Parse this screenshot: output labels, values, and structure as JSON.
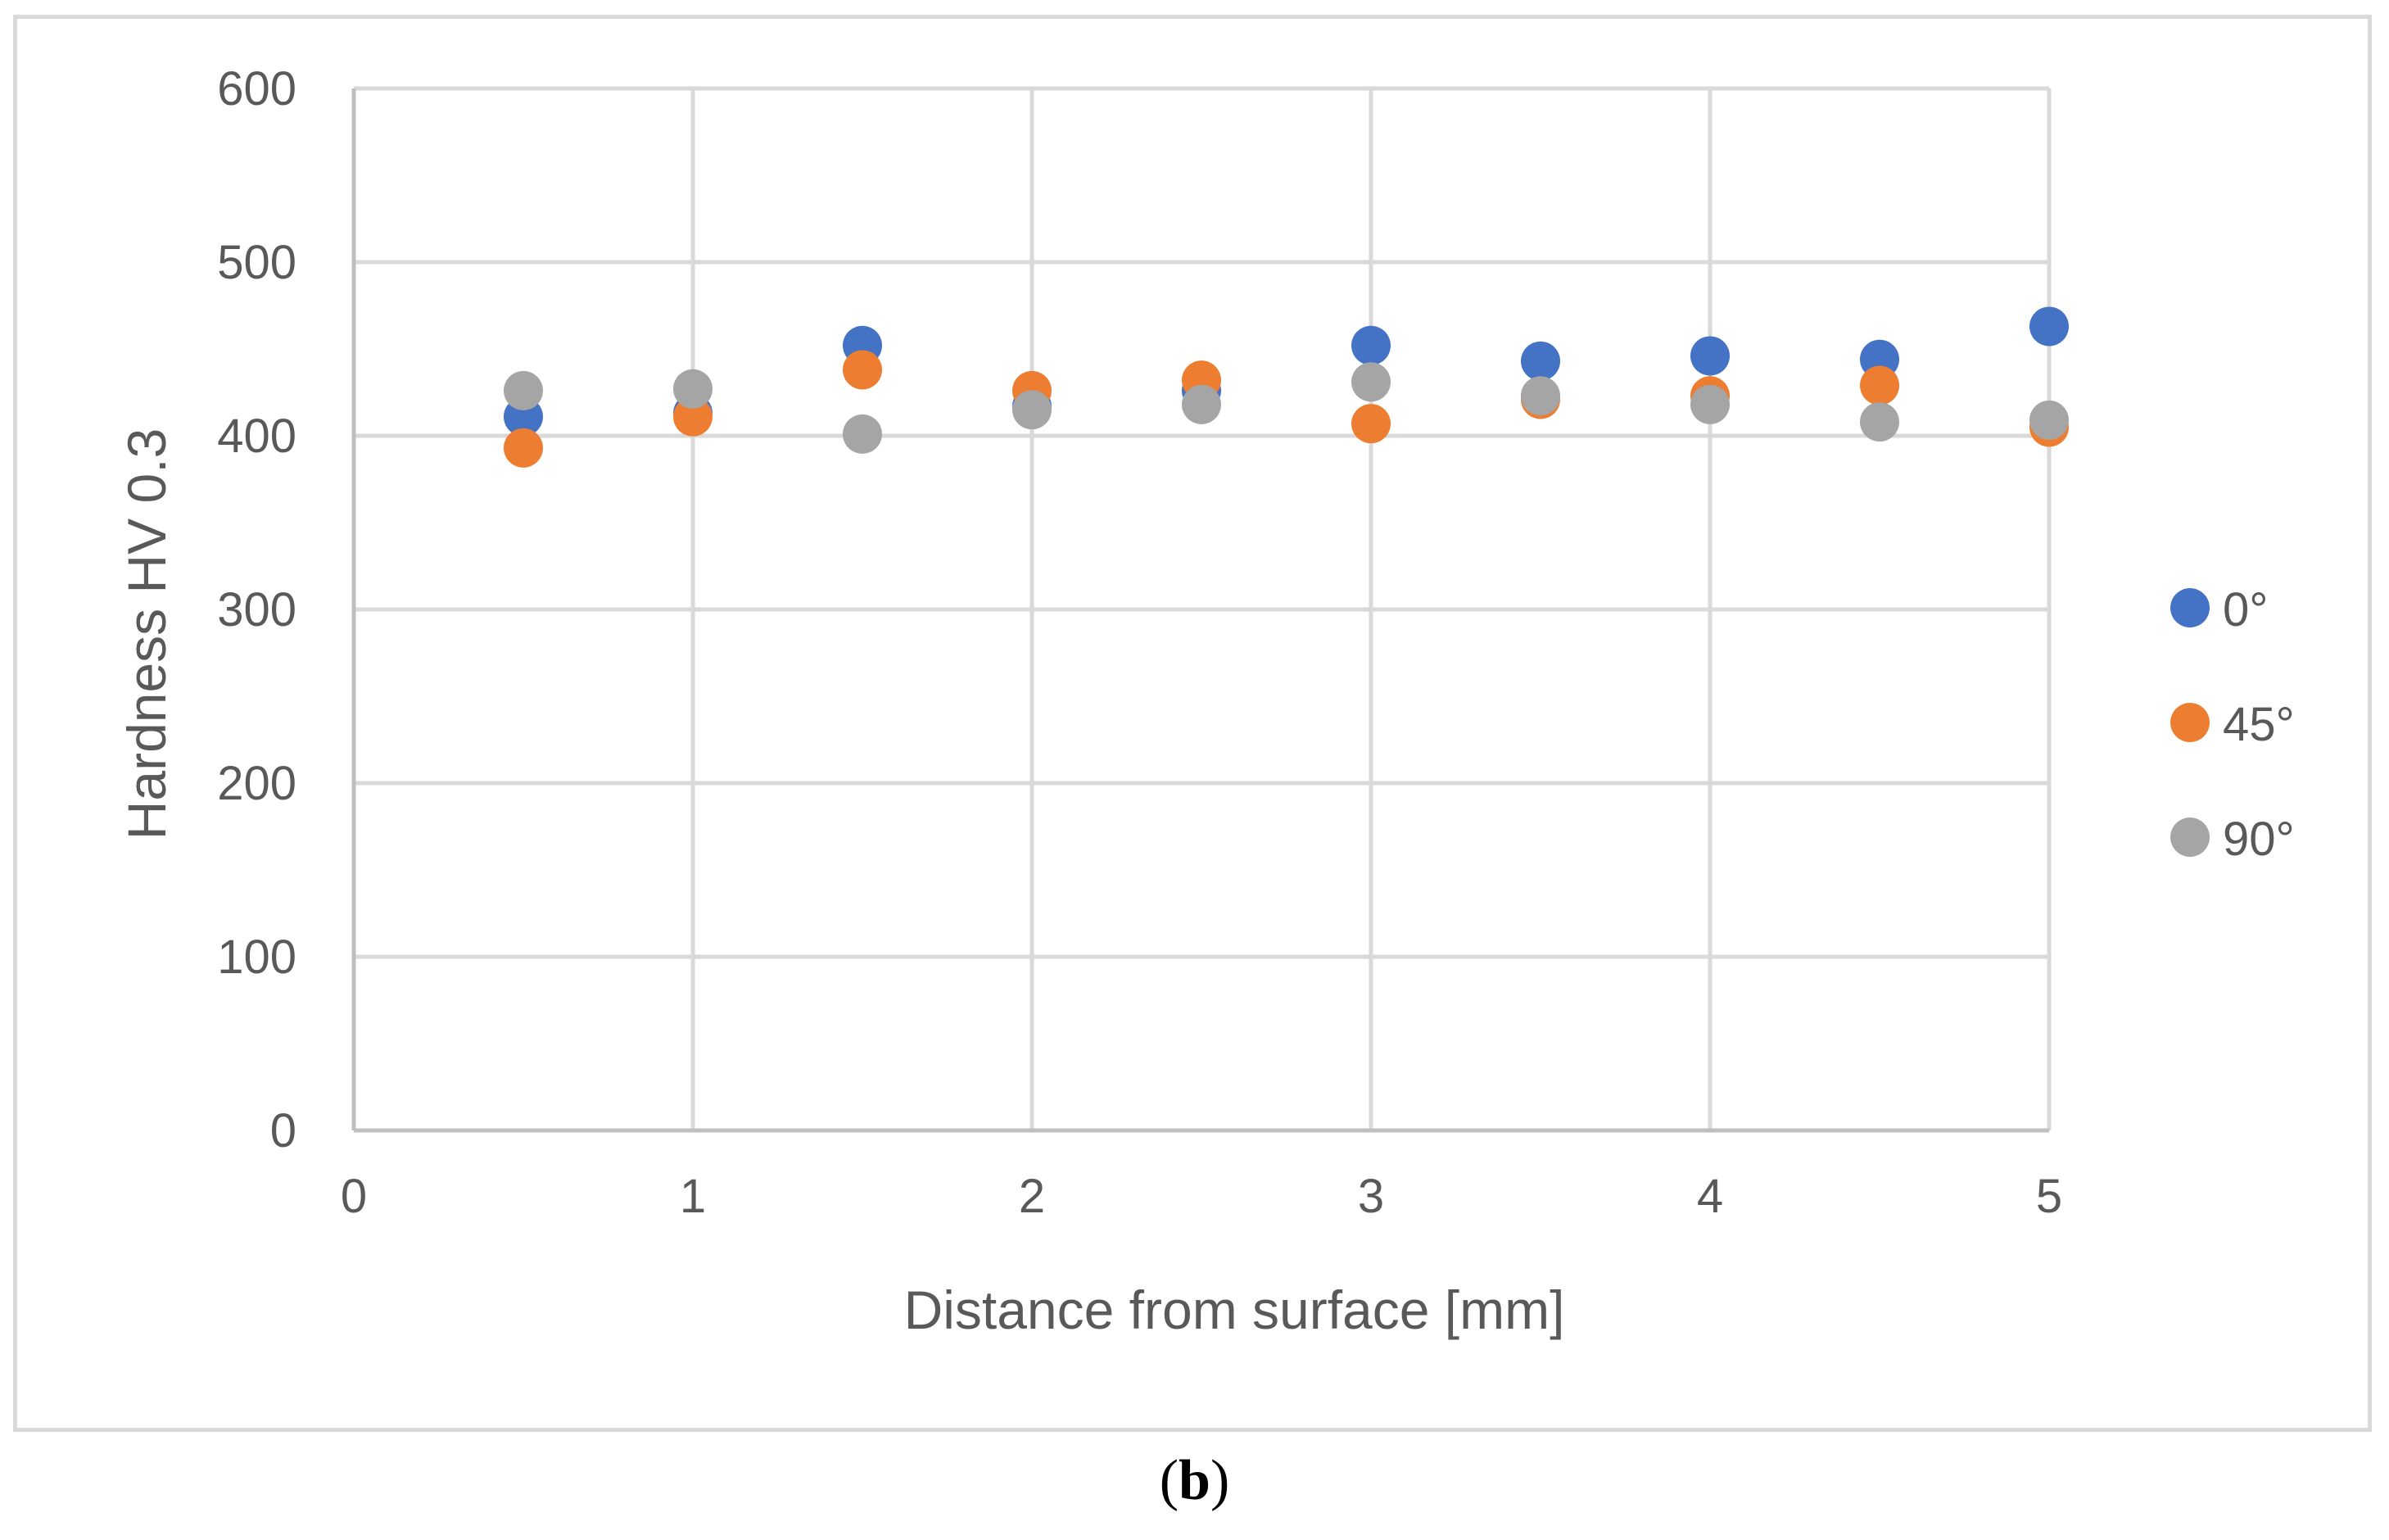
{
  "chart_data": {
    "type": "scatter",
    "xlabel": "Distance from surface [mm]",
    "ylabel": "Hardness HV 0.3",
    "xlim": [
      0,
      5
    ],
    "ylim": [
      0,
      600
    ],
    "x_ticks": [
      "0",
      "1",
      "2",
      "3",
      "4",
      "5"
    ],
    "y_ticks": [
      "0",
      "100",
      "200",
      "300",
      "400",
      "500",
      "600"
    ],
    "grid": true,
    "legend_position": "right",
    "series": [
      {
        "name": "0°",
        "color": "#4472C4",
        "x": [
          0.5,
          1,
          1.5,
          2,
          2.5,
          3,
          3.5,
          4,
          4.5,
          5
        ],
        "y": [
          411,
          413,
          452,
          417,
          426,
          452,
          443,
          446,
          444,
          463
        ]
      },
      {
        "name": "45°",
        "color": "#ED7D31",
        "x": [
          0.5,
          1,
          1.5,
          2,
          2.5,
          3,
          3.5,
          4,
          4.5,
          5
        ],
        "y": [
          393,
          411,
          438,
          426,
          432,
          407,
          421,
          423,
          429,
          405
        ]
      },
      {
        "name": "90°",
        "color": "#A5A5A5",
        "x": [
          0.5,
          1,
          1.5,
          2,
          2.5,
          3,
          3.5,
          4,
          4.5,
          5
        ],
        "y": [
          426,
          427,
          401,
          415,
          418,
          431,
          423,
          418,
          408,
          409
        ]
      }
    ]
  },
  "caption": {
    "open": "(",
    "letter": "b",
    "close": ")"
  }
}
